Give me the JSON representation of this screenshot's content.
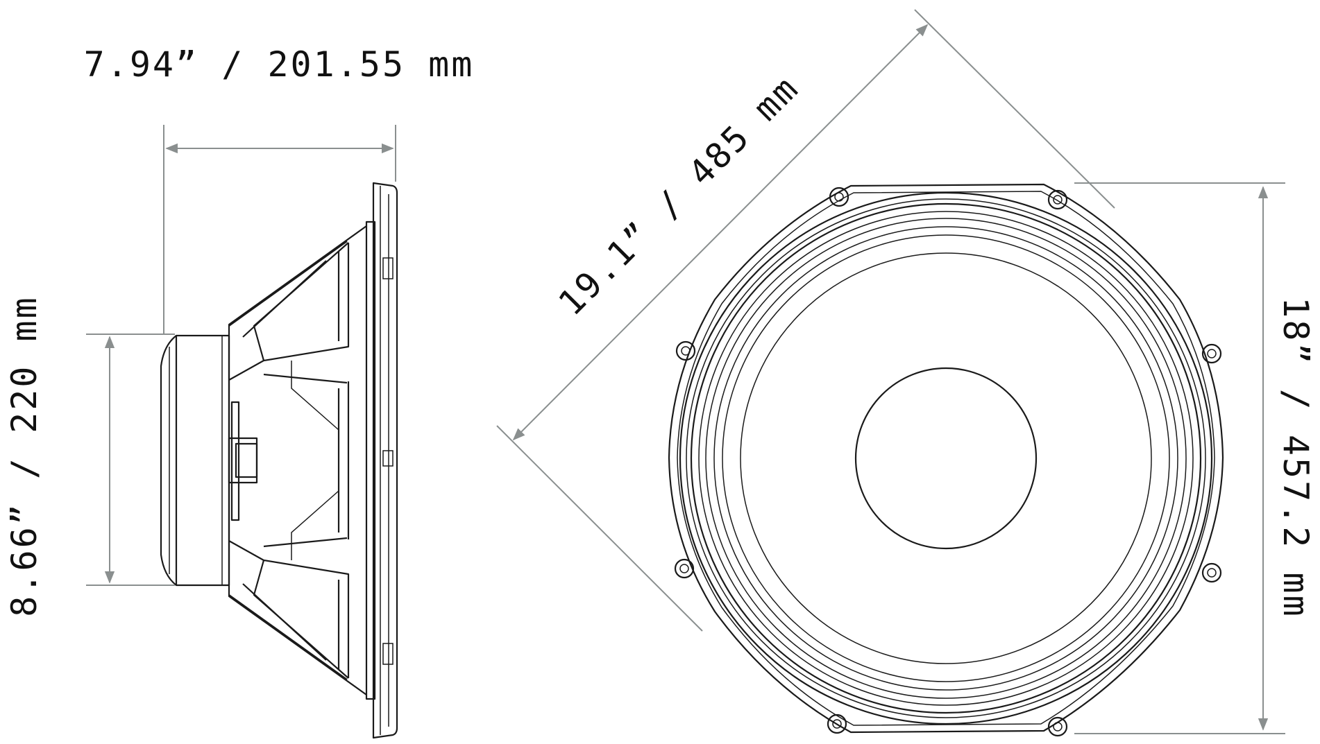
{
  "dimensions": {
    "depth_label": "7.94” / 201.55 mm",
    "magnet_height_label": "8.66” / 220 mm",
    "diagonal_label": "19.1” / 485 mm",
    "frame_width_label": "18” / 457.2 mm"
  },
  "colors": {
    "dimension_line": "#8a8f8f",
    "drawing_ink": "#1a1a1a",
    "background": "#ffffff"
  }
}
